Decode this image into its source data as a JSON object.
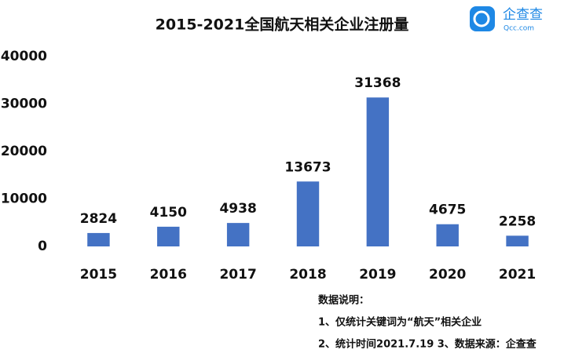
{
  "chart_data": {
    "type": "bar",
    "title": "2015-2021全国航天相关企业注册量",
    "categories": [
      "2015",
      "2016",
      "2017",
      "2018",
      "2019",
      "2020",
      "2021"
    ],
    "values": [
      2824,
      4150,
      4938,
      13673,
      31368,
      4675,
      2258
    ],
    "color": "#4472c4",
    "ylim": [
      0,
      40000
    ],
    "yticks": [
      0,
      10000,
      20000,
      30000,
      40000
    ],
    "grid": false,
    "notes": [
      "数据说明：",
      "1、仅统计关键词为“航天”相关企业",
      "2、统计时间2021.7.19 3、数据来源：企查查"
    ]
  },
  "logo": {
    "name": "企查查",
    "url": "Qcc.com"
  }
}
